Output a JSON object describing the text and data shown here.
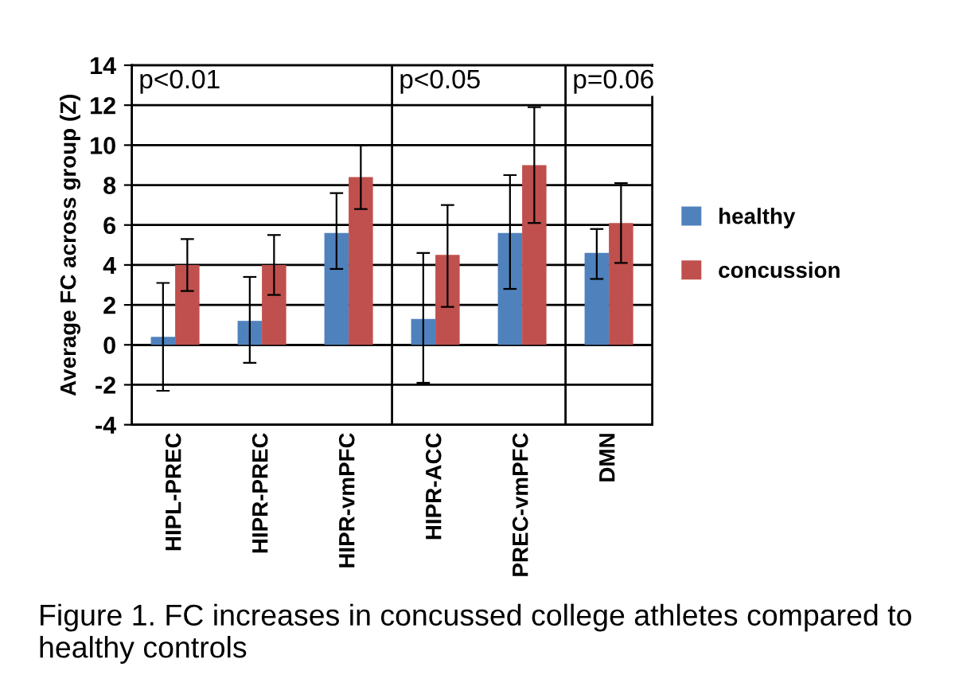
{
  "chart_data": {
    "type": "bar",
    "ylabel": "Average FC across group (Z)",
    "categories": [
      "HIPL-PREC",
      "HIPR-PREC",
      "HIPR-vmPFC",
      "HIPR-ACC",
      "PREC-vmPFC",
      "DMN"
    ],
    "series": [
      {
        "name": "healthy",
        "color": "#4f81bd",
        "values": [
          0.4,
          1.2,
          5.6,
          1.3,
          5.6,
          4.6
        ],
        "errors": [
          [
            -2.3,
            3.1
          ],
          [
            -0.9,
            3.4
          ],
          [
            3.8,
            7.6
          ],
          [
            -1.9,
            4.6
          ],
          [
            2.8,
            8.5
          ],
          [
            3.3,
            5.8
          ]
        ]
      },
      {
        "name": "concussion",
        "color": "#c0504d",
        "values": [
          4.0,
          4.0,
          8.4,
          4.5,
          9.0,
          6.1
        ],
        "errors": [
          [
            2.7,
            5.3
          ],
          [
            2.5,
            5.5
          ],
          [
            6.8,
            10.0
          ],
          [
            1.9,
            7.0
          ],
          [
            6.1,
            11.9
          ],
          [
            4.1,
            8.1
          ]
        ]
      }
    ],
    "ylim": [
      -4,
      14
    ],
    "yticks": [
      -4,
      -2,
      0,
      2,
      4,
      6,
      8,
      10,
      12,
      14
    ],
    "grid": "y",
    "legend": "right",
    "annotations": [
      "p<0.01",
      "p<0.05",
      "p=0.06",
      "Figure 1. FC increases in concussed college athletes compared to healthy controls"
    ]
  }
}
